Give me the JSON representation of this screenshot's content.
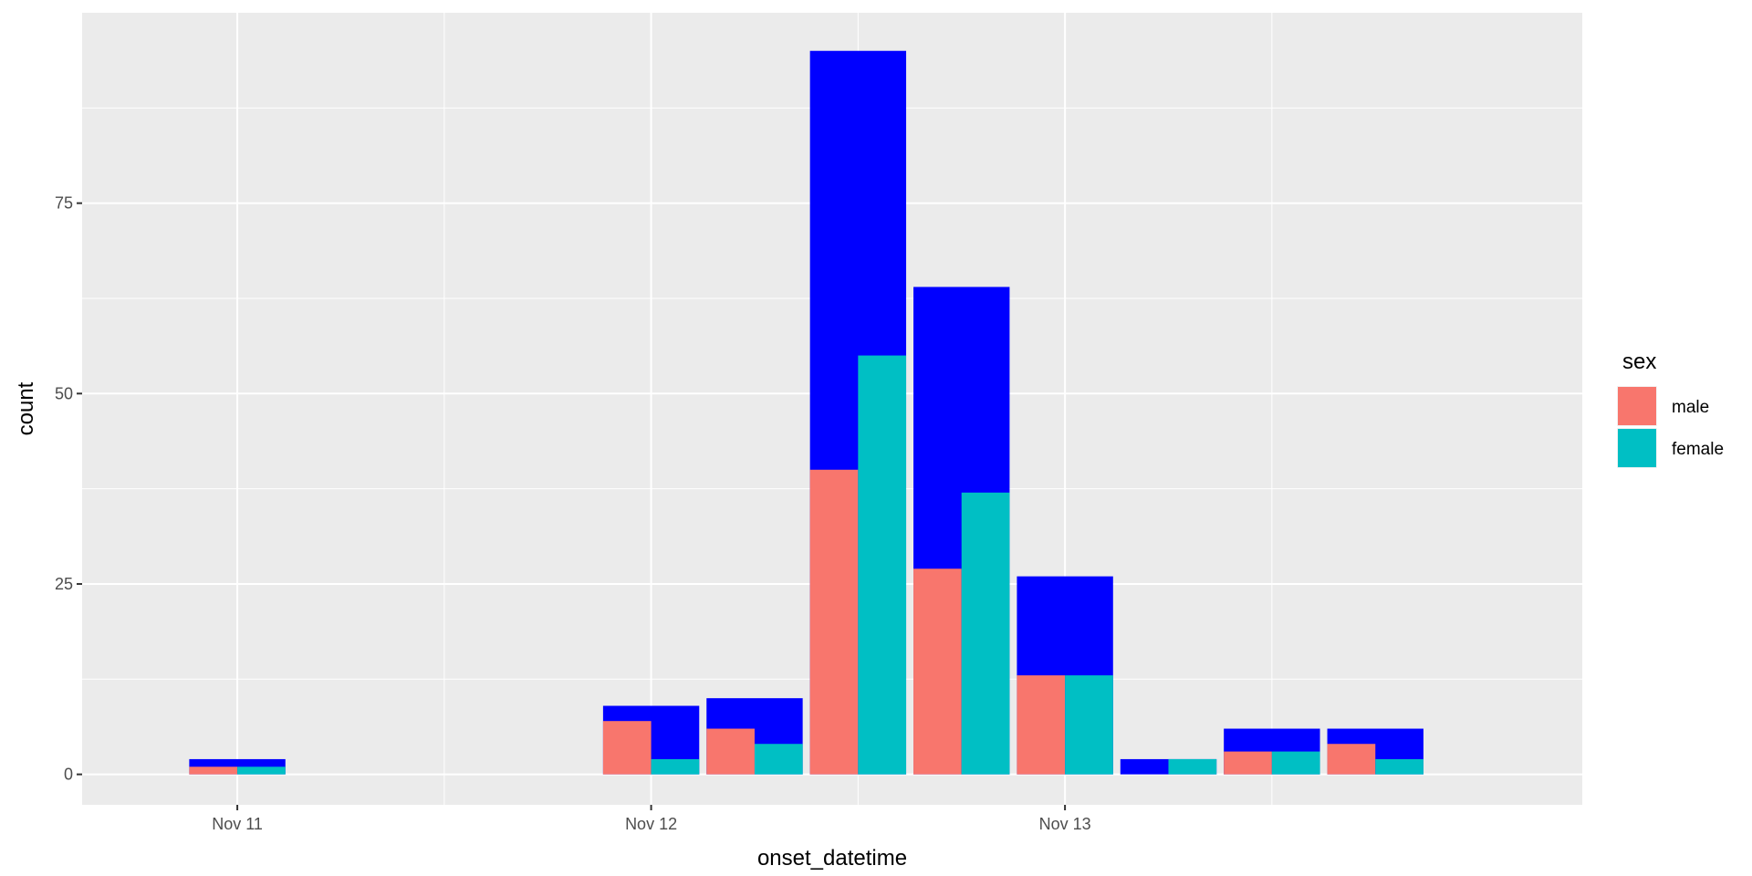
{
  "chart_data": {
    "type": "bar",
    "xlabel": "onset_datetime",
    "ylabel": "count",
    "ylim": [
      -4,
      100
    ],
    "y_ticks": [
      0,
      25,
      50,
      75
    ],
    "grid": true,
    "x_tick_labels": [
      "Nov 11",
      "Nov 12",
      "Nov 13"
    ],
    "bin_hours": 6,
    "x_range": [
      "2014-11-10T15:00",
      "2014-11-14T06:00"
    ],
    "x_ticks": [
      "2014-11-11T00:00",
      "2014-11-12T00:00",
      "2014-11-13T00:00"
    ],
    "x_minor_ticks": [
      "2014-11-11T12:00",
      "2014-11-12T12:00",
      "2014-11-13T12:00"
    ],
    "bins": [
      {
        "start": "2014-11-10T21:00",
        "total": 2,
        "male": 1,
        "female": 1
      },
      {
        "start": "2014-11-11T21:00",
        "total": 9,
        "male": 7,
        "female": 2
      },
      {
        "start": "2014-11-12T03:00",
        "total": 10,
        "male": 6,
        "female": 4
      },
      {
        "start": "2014-11-12T09:00",
        "total": 95,
        "male": 40,
        "female": 55
      },
      {
        "start": "2014-11-12T15:00",
        "total": 64,
        "male": 27,
        "female": 37
      },
      {
        "start": "2014-11-12T21:00",
        "total": 26,
        "male": 13,
        "female": 13
      },
      {
        "start": "2014-11-13T03:00",
        "total": 2,
        "male": 0,
        "female": 2
      },
      {
        "start": "2014-11-13T09:00",
        "total": 6,
        "male": 3,
        "female": 3
      },
      {
        "start": "2014-11-13T15:00",
        "total": 6,
        "male": 4,
        "female": 2
      }
    ],
    "total_color": "#0000ff",
    "legend": {
      "title": "sex",
      "position": "right",
      "entries": [
        {
          "label": "male",
          "color": "#f8766d"
        },
        {
          "label": "female",
          "color": "#00bfc4"
        }
      ]
    },
    "panel_background": "#ebebeb",
    "grid_color": "#ffffff"
  }
}
